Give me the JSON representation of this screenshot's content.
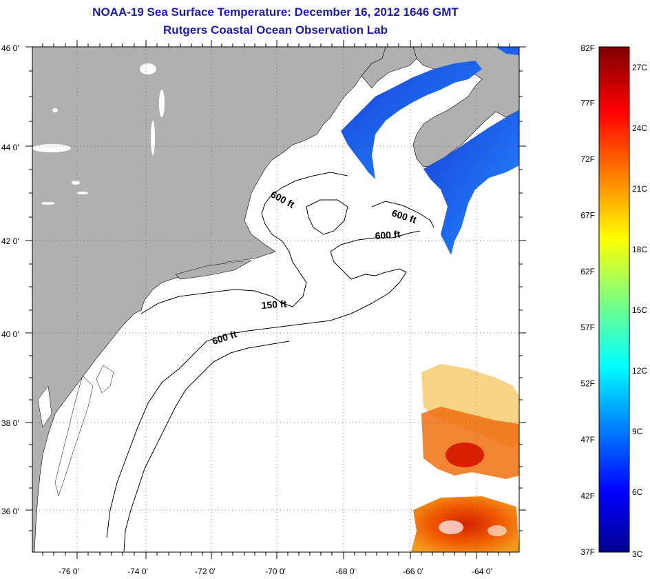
{
  "header": {
    "title": "NOAA-19 Sea Surface Temperature:  December 16, 2012 1646 GMT",
    "subtitle": "Rutgers Coastal Ocean Observation Lab"
  },
  "map": {
    "lat_labels": [
      "46 0'",
      "44 0'",
      "42 0'",
      "40 0'",
      "38 0'",
      "36 0'"
    ],
    "lon_labels": [
      "-76 0'",
      "-74 0'",
      "-72 0'",
      "-70 0'",
      "-68 0'",
      "-66 0'",
      "-64 0'"
    ],
    "depth_labels": [
      "600 ft",
      "600 ft",
      "600 ft",
      "150 ft",
      "600 ft"
    ],
    "colors": {
      "land": "#b0b0b0",
      "ocean_no_data": "#ffffff",
      "contour": "#000000"
    }
  },
  "colorbar": {
    "f_labels": [
      "82F",
      "77F",
      "72F",
      "67F",
      "62F",
      "57F",
      "52F",
      "47F",
      "42F",
      "37F"
    ],
    "c_labels": [
      "27C",
      "24C",
      "21C",
      "18C",
      "15C",
      "12C",
      "9C",
      "6C",
      "3C"
    ]
  }
}
